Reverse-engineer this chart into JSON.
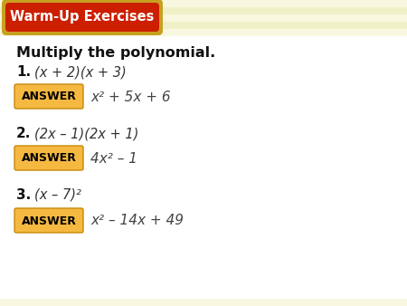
{
  "bg_top_color": "#f5f5c8",
  "bg_main_color": "#ffffff",
  "bg_bottom_color": "#f5f5c8",
  "header_bg": "#cc1f00",
  "header_border": "#c8a020",
  "header_text": "Warm-Up Exercises",
  "header_text_color": "#ffffff",
  "title_text": "Multiply the polynomial.",
  "problems": [
    {
      "number": "1.",
      "question": "(x + 2)(x + 3)",
      "answer": "x² + 5x + 6"
    },
    {
      "number": "2.",
      "question": "(2x – 1)(2x + 1)",
      "answer": "4x² – 1"
    },
    {
      "number": "3.",
      "question": "(x – 7)²",
      "answer": "x² – 14x + 49"
    }
  ],
  "answer_box_color": "#f5b942",
  "answer_box_border": "#c8880a",
  "answer_label": "ANSWER",
  "answer_label_color": "#000000",
  "answer_text_color": "#444444",
  "question_color": "#333333",
  "number_color": "#111111",
  "stripe_light": "#f8f8e0",
  "stripe_dark": "#f0f0c8"
}
